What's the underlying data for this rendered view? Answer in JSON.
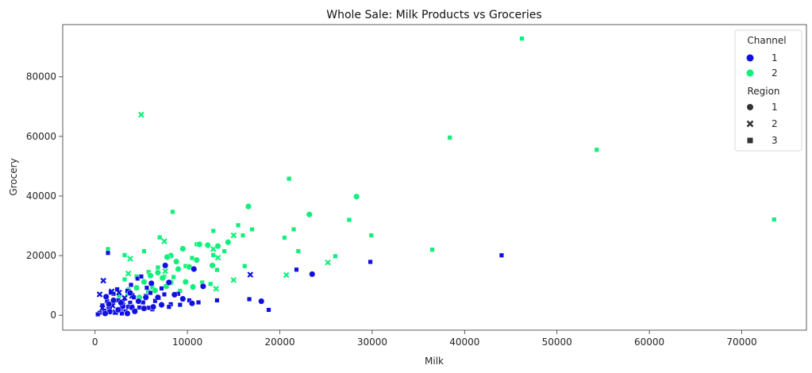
{
  "chart_data": {
    "type": "scatter",
    "title": "Whole Sale: Milk Products vs Groceries",
    "xlabel": "Milk",
    "ylabel": "Grocery",
    "xlim": [
      -3500,
      77000
    ],
    "ylim": [
      -5000,
      97500
    ],
    "xticks": [
      0,
      10000,
      20000,
      30000,
      40000,
      50000,
      60000,
      70000
    ],
    "yticks": [
      0,
      20000,
      40000,
      60000,
      80000
    ],
    "grid": false,
    "legend": {
      "placement": "top-right",
      "channel_title": "Channel",
      "channel_entries": [
        {
          "label": "1",
          "color": "#1010e0"
        },
        {
          "label": "2",
          "color": "#10f07a"
        }
      ],
      "region_title": "Region",
      "region_entries": [
        {
          "label": "1",
          "marker": "circle"
        },
        {
          "label": "2",
          "marker": "x"
        },
        {
          "label": "3",
          "marker": "square"
        }
      ]
    },
    "series": [
      {
        "channel": "2",
        "region": "3",
        "points": [
          [
            46200,
            92800
          ],
          [
            38400,
            59600
          ],
          [
            54300,
            55500
          ],
          [
            73500,
            32100
          ],
          [
            21000,
            45800
          ],
          [
            27500,
            32000
          ],
          [
            29900,
            26800
          ],
          [
            21500,
            28800
          ],
          [
            20500,
            26000
          ],
          [
            36500,
            22000
          ],
          [
            22000,
            21500
          ],
          [
            26000,
            19800
          ],
          [
            17000,
            28800
          ],
          [
            15500,
            30200
          ],
          [
            12800,
            28300
          ],
          [
            16000,
            26800
          ],
          [
            8400,
            34700
          ],
          [
            1400,
            22200
          ],
          [
            7000,
            26100
          ],
          [
            5300,
            21500
          ],
          [
            3200,
            20200
          ],
          [
            9500,
            22300
          ],
          [
            11000,
            23800
          ],
          [
            6800,
            16000
          ],
          [
            5800,
            14500
          ],
          [
            4500,
            13000
          ],
          [
            6200,
            9300
          ],
          [
            7500,
            13000
          ],
          [
            12800,
            20200
          ],
          [
            14000,
            21500
          ],
          [
            16200,
            16500
          ],
          [
            13200,
            15200
          ],
          [
            10500,
            19200
          ],
          [
            9800,
            16500
          ],
          [
            8500,
            12800
          ],
          [
            3200,
            12000
          ],
          [
            11600,
            11000
          ],
          [
            12500,
            10500
          ],
          [
            3500,
            7200
          ],
          [
            9200,
            8200
          ],
          [
            2600,
            6500
          ]
        ]
      },
      {
        "channel": "2",
        "region": "2",
        "points": [
          [
            5000,
            67300
          ],
          [
            25200,
            17700
          ],
          [
            20700,
            13500
          ],
          [
            15000,
            11800
          ],
          [
            13300,
            19300
          ],
          [
            12800,
            22200
          ],
          [
            15000,
            26800
          ],
          [
            3800,
            19000
          ],
          [
            7500,
            24800
          ],
          [
            3600,
            14000
          ],
          [
            13100,
            8900
          ],
          [
            7600,
            14800
          ]
        ]
      },
      {
        "channel": "2",
        "region": "1",
        "points": [
          [
            28300,
            39800
          ],
          [
            16600,
            36500
          ],
          [
            23200,
            33800
          ],
          [
            14400,
            24500
          ],
          [
            13300,
            23200
          ],
          [
            12200,
            23500
          ],
          [
            11300,
            23800
          ],
          [
            9500,
            22300
          ],
          [
            8200,
            20000
          ],
          [
            7800,
            19500
          ],
          [
            11000,
            18500
          ],
          [
            8800,
            18000
          ],
          [
            10200,
            16200
          ],
          [
            9000,
            15500
          ],
          [
            12700,
            16700
          ],
          [
            6800,
            14300
          ],
          [
            6000,
            13300
          ],
          [
            7300,
            12500
          ],
          [
            5300,
            11200
          ],
          [
            8200,
            11000
          ],
          [
            4500,
            9200
          ],
          [
            6500,
            8300
          ],
          [
            5800,
            7800
          ],
          [
            7700,
            9700
          ],
          [
            3600,
            8500
          ],
          [
            4800,
            6000
          ],
          [
            9800,
            11200
          ],
          [
            10600,
            9500
          ]
        ]
      },
      {
        "channel": "1",
        "region": "3",
        "points": [
          [
            44000,
            20100
          ],
          [
            29800,
            17900
          ],
          [
            21800,
            15300
          ],
          [
            1400,
            20900
          ],
          [
            16700,
            5400
          ],
          [
            13200,
            5000
          ],
          [
            18800,
            1800
          ],
          [
            11200,
            4300
          ],
          [
            10200,
            5000
          ],
          [
            8200,
            3700
          ],
          [
            9000,
            7200
          ],
          [
            6200,
            2000
          ],
          [
            4800,
            2600
          ],
          [
            3300,
            1300
          ],
          [
            2200,
            900
          ],
          [
            1600,
            2500
          ],
          [
            1000,
            1500
          ],
          [
            500,
            800
          ],
          [
            300,
            300
          ],
          [
            2500,
            5000
          ],
          [
            1800,
            4000
          ],
          [
            4200,
            6000
          ],
          [
            3800,
            4200
          ],
          [
            5500,
            6500
          ],
          [
            6000,
            7500
          ],
          [
            7200,
            9000
          ],
          [
            2800,
            2200
          ],
          [
            4000,
            3000
          ],
          [
            3000,
            3800
          ],
          [
            5200,
            4300
          ],
          [
            6500,
            4800
          ],
          [
            9200,
            3500
          ],
          [
            7500,
            7000
          ],
          [
            1200,
            6000
          ],
          [
            2000,
            7200
          ],
          [
            3500,
            8200
          ],
          [
            4600,
            12300
          ],
          [
            5000,
            13000
          ],
          [
            5600,
            9200
          ],
          [
            6900,
            5800
          ],
          [
            8000,
            2800
          ],
          [
            3900,
            10200
          ],
          [
            2400,
            8700
          ],
          [
            1700,
            7600
          ],
          [
            5800,
            2500
          ],
          [
            4400,
            1600
          ],
          [
            2900,
            600
          ],
          [
            1300,
            4700
          ],
          [
            800,
            3300
          ],
          [
            3600,
            2800
          ]
        ]
      },
      {
        "channel": "1",
        "region": "2",
        "points": [
          [
            900,
            11600
          ],
          [
            16800,
            13600
          ],
          [
            1800,
            8000
          ],
          [
            3200,
            5800
          ],
          [
            2600,
            7600
          ],
          [
            500,
            7000
          ],
          [
            1900,
            3200
          ],
          [
            1500,
            2000
          ],
          [
            2200,
            1000
          ],
          [
            4000,
            6500
          ],
          [
            3000,
            4500
          ],
          [
            800,
            2400
          ]
        ]
      },
      {
        "channel": "1",
        "region": "1",
        "points": [
          [
            23500,
            13800
          ],
          [
            18000,
            4700
          ],
          [
            10700,
            15500
          ],
          [
            11700,
            9700
          ],
          [
            8000,
            11000
          ],
          [
            7600,
            16700
          ],
          [
            6100,
            10700
          ],
          [
            5300,
            2300
          ],
          [
            8600,
            6900
          ],
          [
            10500,
            4000
          ],
          [
            3000,
            3000
          ],
          [
            4000,
            2600
          ],
          [
            2500,
            1800
          ],
          [
            3500,
            600
          ],
          [
            6800,
            6000
          ],
          [
            4700,
            4700
          ],
          [
            1600,
            1200
          ],
          [
            1100,
            600
          ],
          [
            1200,
            6200
          ],
          [
            2000,
            5000
          ],
          [
            5500,
            6000
          ],
          [
            3800,
            7500
          ],
          [
            2800,
            4200
          ],
          [
            7200,
            3500
          ],
          [
            6300,
            2800
          ],
          [
            1500,
            3700
          ],
          [
            9500,
            5500
          ],
          [
            4300,
            1300
          ]
        ]
      }
    ]
  }
}
